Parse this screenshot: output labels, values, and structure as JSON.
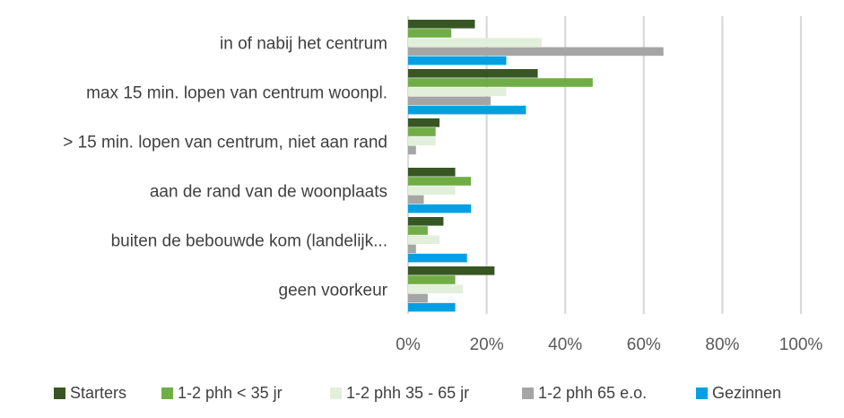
{
  "chart_data": {
    "type": "bar",
    "orientation": "horizontal",
    "categories": [
      "in of nabij het centrum",
      "max 15 min. lopen van centrum woonpl.",
      "> 15 min. lopen van centrum, niet aan rand",
      "aan de rand van de woonplaats",
      "buiten de bebouwde kom (landelijk...",
      "geen voorkeur"
    ],
    "series": [
      {
        "name": "Starters",
        "color": "#375623",
        "values": [
          17,
          33,
          8,
          12,
          9,
          22
        ]
      },
      {
        "name": "1-2 phh < 35 jr",
        "color": "#70AD47",
        "values": [
          11,
          47,
          7,
          16,
          5,
          12
        ]
      },
      {
        "name": "1-2 phh 35 - 65 jr",
        "color": "#E2EFDA",
        "values": [
          34,
          25,
          7,
          12,
          8,
          14
        ]
      },
      {
        "name": "1-2 phh 65 e.o.",
        "color": "#A5A5A5",
        "values": [
          65,
          21,
          2,
          4,
          2,
          5
        ]
      },
      {
        "name": "Gezinnen",
        "color": "#00A0E3",
        "values": [
          25,
          30,
          0,
          16,
          15,
          12
        ]
      }
    ],
    "xlim": [
      0,
      100
    ],
    "x_ticks": [
      "0%",
      "20%",
      "40%",
      "60%",
      "80%",
      "100%"
    ],
    "grid": true,
    "legend_position": "bottom"
  }
}
